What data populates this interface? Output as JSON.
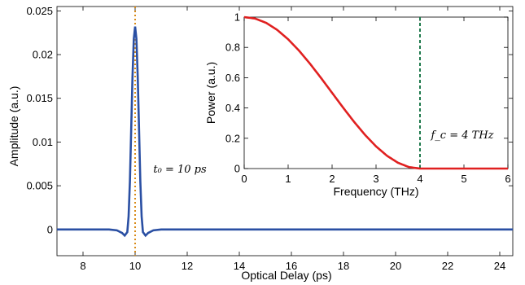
{
  "chart_data": [
    {
      "id": "main",
      "type": "line",
      "xlabel": "Optical Delay (ps)",
      "ylabel": "Amplitude (a.u.)",
      "xlim": [
        7,
        24.5
      ],
      "ylim": [
        -0.003,
        0.0255
      ],
      "xticks": [
        8,
        10,
        12,
        14,
        16,
        18,
        20,
        22,
        24
      ],
      "yticks": [
        0,
        0.005,
        0.01,
        0.015,
        0.02,
        0.025
      ],
      "ytick_labels": [
        "0",
        "0.005",
        "0.01",
        "0.015",
        "0.02",
        "0.025"
      ],
      "grid": false,
      "series": [
        {
          "color": "#2a4fa3",
          "x": [
            7.0,
            9.0,
            9.3,
            9.5,
            9.6,
            9.7,
            9.75,
            9.8,
            9.85,
            9.9,
            9.95,
            10.0,
            10.05,
            10.1,
            10.15,
            10.2,
            10.25,
            10.3,
            10.4,
            10.5,
            10.7,
            11.0,
            24.5
          ],
          "y": [
            0.0,
            0.0,
            -0.0001,
            -0.0004,
            -0.0007,
            -0.0003,
            0.0015,
            0.0055,
            0.0115,
            0.0175,
            0.0218,
            0.0232,
            0.0218,
            0.0175,
            0.0115,
            0.0055,
            0.0015,
            -0.0003,
            -0.0007,
            -0.0004,
            -0.0001,
            0.0,
            0.0
          ]
        }
      ],
      "vline": {
        "x": 10,
        "color": "#d98c1a",
        "style": "dotted"
      },
      "annotation": {
        "text": "t₀ = 10 ps",
        "x": 10.7,
        "y": 0.0065
      }
    },
    {
      "id": "inset",
      "type": "line",
      "xlabel": "Frequency (THz)",
      "ylabel": "Power (a.u.)",
      "xlim": [
        0,
        6
      ],
      "ylim": [
        0,
        1
      ],
      "xticks": [
        0,
        1,
        2,
        3,
        4,
        5,
        6
      ],
      "yticks": [
        0,
        0.2,
        0.4,
        0.6,
        0.8,
        1
      ],
      "ytick_labels": [
        "0",
        "0.2",
        "0.4",
        "0.6",
        "0.8",
        "1"
      ],
      "grid": false,
      "series": [
        {
          "color": "#e02020",
          "x": [
            0,
            0.25,
            0.5,
            0.75,
            1.0,
            1.25,
            1.5,
            1.75,
            2.0,
            2.25,
            2.5,
            2.75,
            3.0,
            3.25,
            3.5,
            3.75,
            4.0,
            6.0
          ],
          "y": [
            1.0,
            0.9904,
            0.9619,
            0.9157,
            0.8536,
            0.7778,
            0.6913,
            0.5975,
            0.5,
            0.4025,
            0.3087,
            0.2222,
            0.1464,
            0.0843,
            0.0381,
            0.0096,
            0.0,
            0.0
          ]
        }
      ],
      "vline": {
        "x": 4,
        "color": "#1f7a4d",
        "style": "dashed"
      },
      "annotation": {
        "text": "f_c = 4 THz",
        "x": 4.25,
        "y": 0.2
      }
    }
  ]
}
